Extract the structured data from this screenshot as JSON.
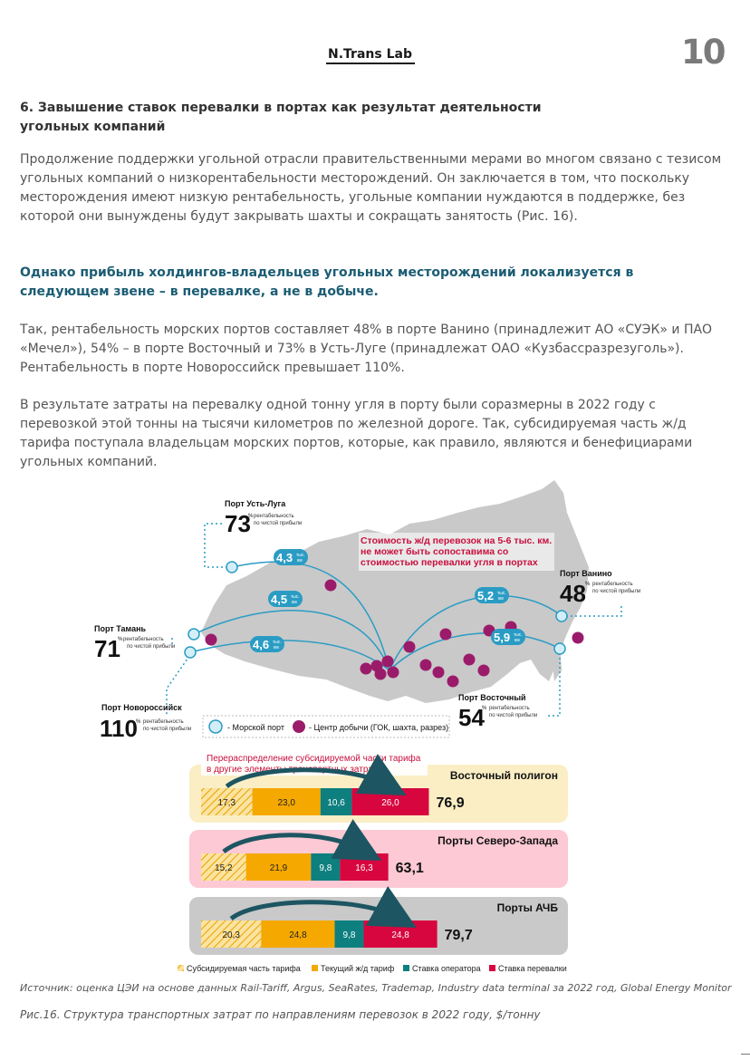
{
  "header": {
    "logo": "N.Trans Lab",
    "page_number": "10"
  },
  "section": {
    "title": "6. Завышение ставок перевалки в портах как результат деятельности угольных компаний",
    "para1": "Продолжение поддержки угольной отрасли правительственными мерами во многом связано с тезисом угольных компаний о низкорентабельности месторождений. Он заключается в том, что поскольку месторождения имеют низкую рентабельность, угольные компании нуждаются в поддержке, без которой они вынуждены будут закрывать шахты и сокращать занятость (Рис. 16).",
    "emphasis": "Однако прибыль холдингов-владельцев угольных месторождений локализуется в следующем звене – в перевалке, а не в добыче.",
    "para2": "Так, рентабельность морских портов составляет 48% в порте Ванино (принадлежит АО «СУЭК» и ПАО «Мечел»), 54% – в порте Восточный и 73% в Усть-Луге (принадлежат ОАО «Кузбассразрезуголь»). Рентабельность в порте Новороссийск превышает 110%.",
    "para3": "В результате затраты на перевалку одной тонну угля в порту были соразмерны в 2022 году с перевозкой этой тонны на тысячи километров по железной дороге. Так, субсидируемая часть ж/д тарифа поступала владельцам морских портов, которые, как правило, являются и бенефициарами угольных компаний."
  },
  "map": {
    "callout": [
      "Стоимость ж/д перевозок на 5-6 тыс. км.",
      "не может быть сопоставима со",
      "стоимостью перевалки угля в портах"
    ],
    "profit_note": [
      "рентабельность",
      "по чистой прибыли"
    ],
    "pct": "%",
    "km_unit": [
      "тыс.",
      "км"
    ],
    "ports": [
      {
        "name": "Порт Усть-Луга",
        "value": "73"
      },
      {
        "name": "Порт Ванино",
        "value": "48"
      },
      {
        "name": "Порт Тамань",
        "value": "71"
      },
      {
        "name": "Порт Новороссийск",
        "value": "110"
      },
      {
        "name": "Порт Восточный",
        "value": "54"
      }
    ],
    "distances": [
      "4,3",
      "4,5",
      "4,6",
      "5,2",
      "5,9"
    ],
    "legend": {
      "port": "- Морской порт",
      "mining": "- Центр добычи (ГОК, шахта, разрез)"
    },
    "colors": {
      "land": "#c9c9c9",
      "route": "#2a9cc4",
      "mine": "#9b1b6b",
      "callout": "#c8103e"
    }
  },
  "chart_data": {
    "type": "bar",
    "stacked": true,
    "orientation": "horizontal",
    "unit": "$/тонну",
    "note": "Перераспределение субсидируемой части тарифа в другие элементы транспортных затрат",
    "categories": [
      "Восточный полигон",
      "Порты Северо-Запада",
      "Порты АЧБ"
    ],
    "totals": [
      "76,9",
      "63,1",
      "79,7"
    ],
    "series": [
      {
        "name": "Субсидируемая часть тарифа",
        "color": "#f2c14e",
        "values": [
          17.3,
          15.2,
          20.3
        ],
        "labels": [
          "17,3",
          "15,2",
          "20,3"
        ]
      },
      {
        "name": "Текущий ж/д тариф",
        "color": "#f5a800",
        "values": [
          23.0,
          21.9,
          24.8
        ],
        "labels": [
          "23,0",
          "21,9",
          "24,8"
        ]
      },
      {
        "name": "Ставка оператора",
        "color": "#0e7f7f",
        "values": [
          10.6,
          9.8,
          9.8
        ],
        "labels": [
          "10,6",
          "9,8",
          "9,8"
        ]
      },
      {
        "name": "Ставка перевалки",
        "color": "#d7063f",
        "values": [
          26.0,
          16.3,
          24.8
        ],
        "labels": [
          "26,0",
          "16,3",
          "24,8"
        ]
      }
    ],
    "panel_colors": [
      "#fbeec5",
      "#fcc9d4",
      "#c9c9c9"
    ]
  },
  "footer": {
    "source": "Источник: оценка ЦЭИ на основе данных Rail-Tariff, Argus, SeaRates, Trademap, Industry data terminal за 2022 год, Global Energy Monitor",
    "caption": "Рис.16. Структура транспортных затрат по направлениям перевозок в 2022 году, $/тонну"
  }
}
